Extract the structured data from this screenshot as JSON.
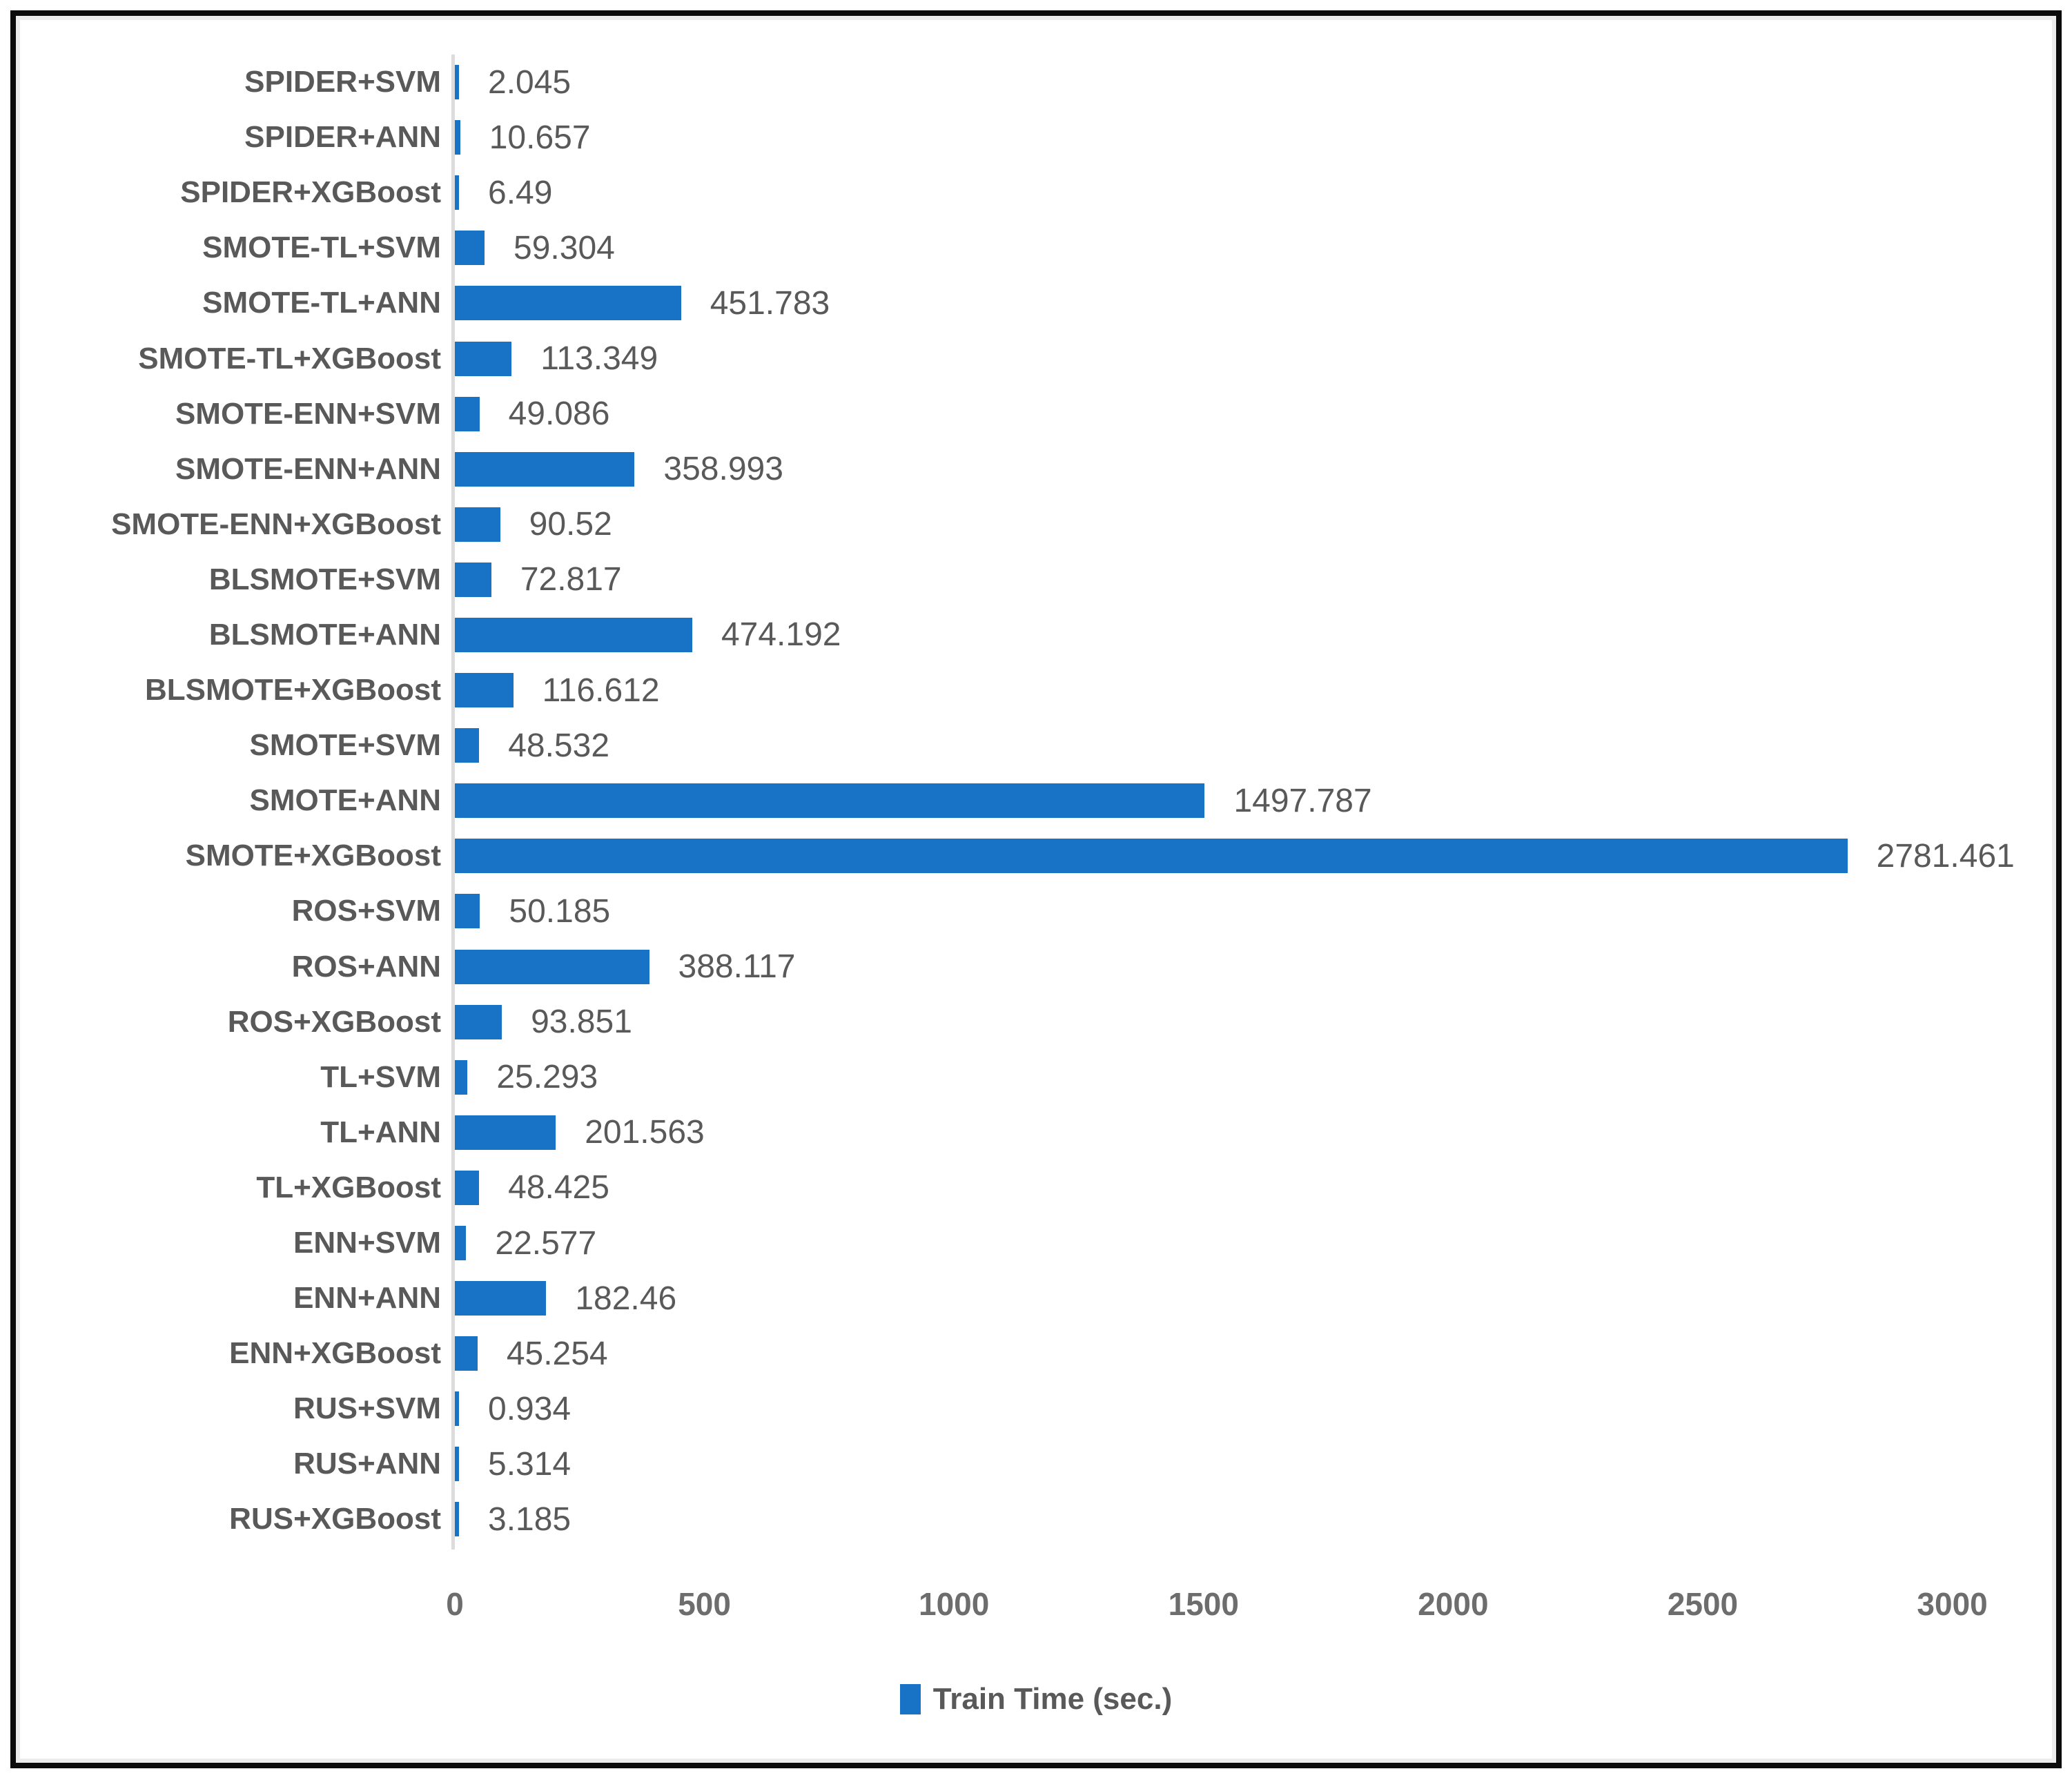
{
  "chart_data": {
    "type": "bar",
    "orientation": "horizontal",
    "title": "",
    "legend": "Train Time (sec.)",
    "legend_position": "bottom-center",
    "grid": "off",
    "categories": [
      "SPIDER+SVM",
      "SPIDER+ANN",
      "SPIDER+XGBoost",
      "SMOTE-TL+SVM",
      "SMOTE-TL+ANN",
      "SMOTE-TL+XGBoost",
      "SMOTE-ENN+SVM",
      "SMOTE-ENN+ANN",
      "SMOTE-ENN+XGBoost",
      "BLSMOTE+SVM",
      "BLSMOTE+ANN",
      "BLSMOTE+XGBoost",
      "SMOTE+SVM",
      "SMOTE+ANN",
      "SMOTE+XGBoost",
      "ROS+SVM",
      "ROS+ANN",
      "ROS+XGBoost",
      "TL+SVM",
      "TL+ANN",
      "TL+XGBoost",
      "ENN+SVM",
      "ENN+ANN",
      "ENN+XGBoost",
      "RUS+SVM",
      "RUS+ANN",
      "RUS+XGBoost"
    ],
    "values": [
      2.045,
      10.657,
      6.49,
      59.304,
      451.783,
      113.349,
      49.086,
      358.993,
      90.52,
      72.817,
      474.192,
      116.612,
      48.532,
      1497.787,
      2781.461,
      50.185,
      388.117,
      93.851,
      25.293,
      201.563,
      48.425,
      22.577,
      182.46,
      45.254,
      0.934,
      5.314,
      3.185
    ],
    "xlabel": "",
    "ylabel": "",
    "xticks": [
      0,
      500,
      1000,
      1500,
      2000,
      2500,
      3000
    ],
    "xlim": [
      0,
      3190
    ],
    "bar_color": "#1873c6",
    "text_color": "#595959",
    "tick_color": "#6d6d6d",
    "axis_line_color": "#dcdcdc",
    "frame_border_color": "#0b0b0b"
  }
}
